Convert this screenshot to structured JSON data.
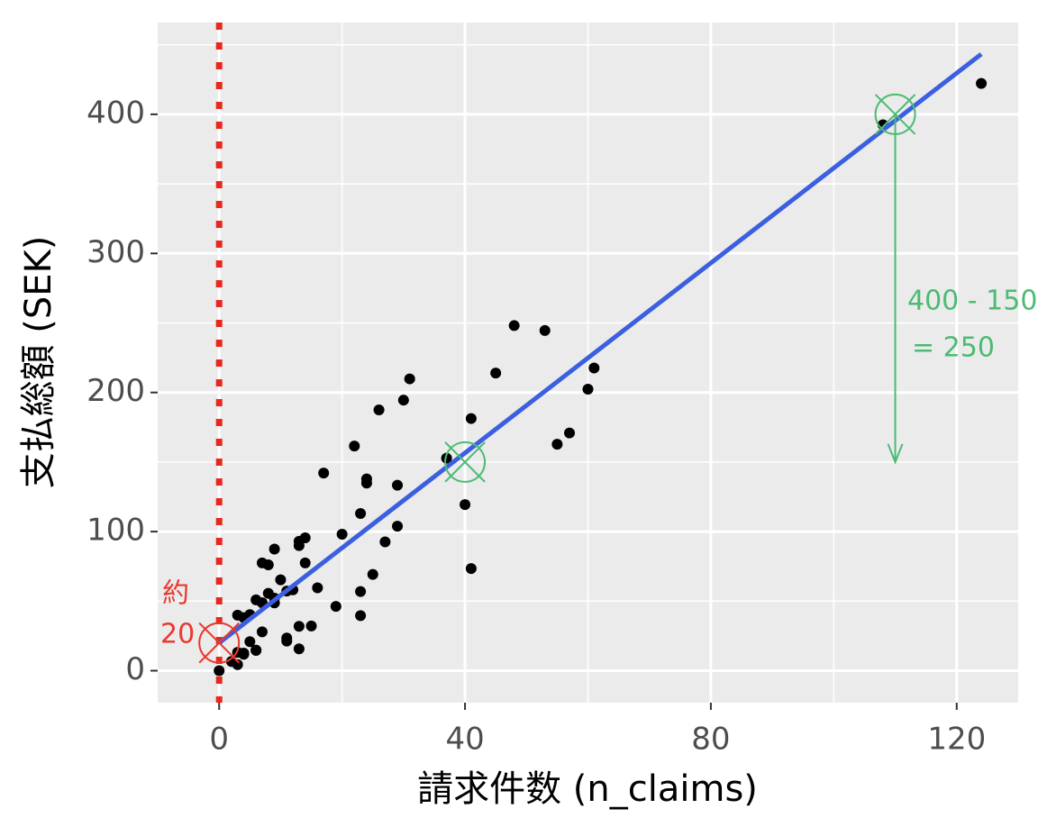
{
  "chart_data": {
    "type": "scatter",
    "x_label": "請求件数 (n_claims)",
    "y_label": "支払総額 (SEK)",
    "x": [
      108,
      19,
      13,
      124,
      40,
      57,
      23,
      14,
      45,
      10,
      5,
      48,
      11,
      23,
      7,
      2,
      24,
      6,
      3,
      23,
      6,
      9,
      9,
      3,
      29,
      7,
      4,
      20,
      7,
      4,
      0,
      25,
      6,
      5,
      22,
      11,
      61,
      12,
      4,
      16,
      13,
      60,
      41,
      37,
      55,
      41,
      11,
      27,
      8,
      3,
      17,
      13,
      13,
      15,
      8,
      29,
      30,
      24,
      9,
      31,
      14,
      53,
      26
    ],
    "values": [
      392.5,
      46.2,
      15.7,
      422.2,
      119.4,
      170.9,
      56.9,
      77.5,
      214,
      65.3,
      20.9,
      248.1,
      23.5,
      39.6,
      48.8,
      6.6,
      134.9,
      50.9,
      4.4,
      113,
      14.8,
      48.7,
      52.1,
      13.2,
      103.9,
      77.5,
      11.8,
      98.1,
      27.9,
      38.1,
      0,
      69.2,
      14.6,
      40.3,
      161.5,
      57.2,
      217.6,
      58.1,
      12.6,
      59.6,
      89.9,
      202.4,
      181.3,
      152.8,
      162.8,
      73.4,
      21.3,
      92.6,
      76.1,
      39.9,
      142.1,
      93,
      31.9,
      32.1,
      55.6,
      133.3,
      194.5,
      137.9,
      87.4,
      209.8,
      95.5,
      244.6,
      187.5
    ],
    "color": "#000000",
    "fit_line": {
      "x": [
        0,
        124
      ],
      "values": [
        19.99,
        443.3
      ],
      "color": "#3b5fe0"
    },
    "vline": {
      "x": 0,
      "color": "#e8281e"
    },
    "markers": [
      {
        "x": 0,
        "y": 20,
        "color": "#e8392e"
      },
      {
        "x": 40,
        "y": 150,
        "color": "#4cbb73"
      },
      {
        "x": 110,
        "y": 400,
        "color": "#4cbb73"
      }
    ],
    "arrow": {
      "x": 110,
      "from": 400,
      "to": 150,
      "color": "#4cbb73"
    },
    "annotations": [
      {
        "text": "約",
        "color": "#e8392e"
      },
      {
        "text": "20",
        "color": "#e8392e"
      },
      {
        "text": "400 - 150",
        "color": "#4cbb73"
      },
      {
        "text": "= 250",
        "color": "#4cbb73"
      }
    ],
    "xlim": [
      -10,
      130
    ],
    "ylim": [
      -23,
      466
    ],
    "xticks": [
      0,
      40,
      80,
      120
    ],
    "yticks": [
      0,
      100,
      200,
      300,
      400
    ],
    "minor_xticks": [
      20,
      60,
      100
    ],
    "minor_yticks": [
      50,
      150,
      250,
      350,
      450
    ],
    "grid": true
  }
}
